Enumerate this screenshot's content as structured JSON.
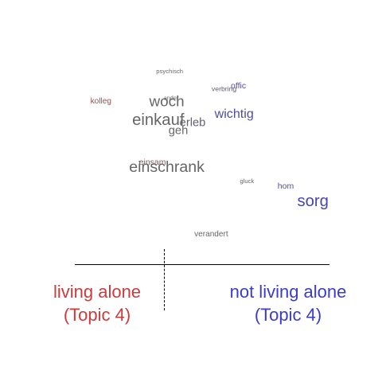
{
  "chart_data": {
    "type": "scatter",
    "title": "",
    "xlabel": "",
    "ylabel": "",
    "xlim": [
      -1,
      1
    ],
    "ylim": [
      -1,
      1
    ],
    "grid": false,
    "colors": {
      "left": "#cc3b3b",
      "neutral": "#666666",
      "right": "#3b3bcc"
    },
    "words": [
      {
        "text": "psychisch",
        "x": -0.26,
        "y": 0.95,
        "size": 0.55,
        "lean": 0.0
      },
      {
        "text": "offic",
        "x": 0.22,
        "y": 0.78,
        "size": 0.75,
        "lean": 0.55
      },
      {
        "text": "verbring",
        "x": 0.12,
        "y": 0.75,
        "size": 0.62,
        "lean": 0.15
      },
      {
        "text": "kolleg",
        "x": -0.74,
        "y": 0.6,
        "size": 0.72,
        "lean": -0.6
      },
      {
        "text": "ander",
        "x": -0.25,
        "y": 0.64,
        "size": 0.52,
        "lean": 0.0
      },
      {
        "text": "woch",
        "x": -0.28,
        "y": 0.59,
        "size": 1.35,
        "lean": 0.0
      },
      {
        "text": "wichtig",
        "x": 0.19,
        "y": 0.46,
        "size": 1.15,
        "lean": 0.55
      },
      {
        "text": "einkauf",
        "x": -0.34,
        "y": 0.38,
        "size": 1.45,
        "lean": 0.0
      },
      {
        "text": "erleb",
        "x": -0.1,
        "y": 0.34,
        "size": 1.05,
        "lean": 0.1
      },
      {
        "text": "geh",
        "x": -0.2,
        "y": 0.25,
        "size": 1.05,
        "lean": 0.0
      },
      {
        "text": "einsam",
        "x": -0.38,
        "y": -0.12,
        "size": 0.75,
        "lean": -0.2
      },
      {
        "text": "einschrank",
        "x": -0.28,
        "y": -0.18,
        "size": 1.4,
        "lean": 0.0
      },
      {
        "text": "gluck",
        "x": 0.28,
        "y": -0.34,
        "size": 0.55,
        "lean": 0.0
      },
      {
        "text": "hom",
        "x": 0.55,
        "y": -0.4,
        "size": 0.75,
        "lean": 0.55
      },
      {
        "text": "sorg",
        "x": 0.74,
        "y": -0.58,
        "size": 1.45,
        "lean": 0.75
      },
      {
        "text": "verandert",
        "x": 0.03,
        "y": -0.97,
        "size": 0.72,
        "lean": 0.0
      }
    ],
    "labels": {
      "left_line1": "living alone",
      "left_line2": "(Topic 4)",
      "right_line1": "not living alone",
      "right_line2": "(Topic 4)"
    }
  }
}
